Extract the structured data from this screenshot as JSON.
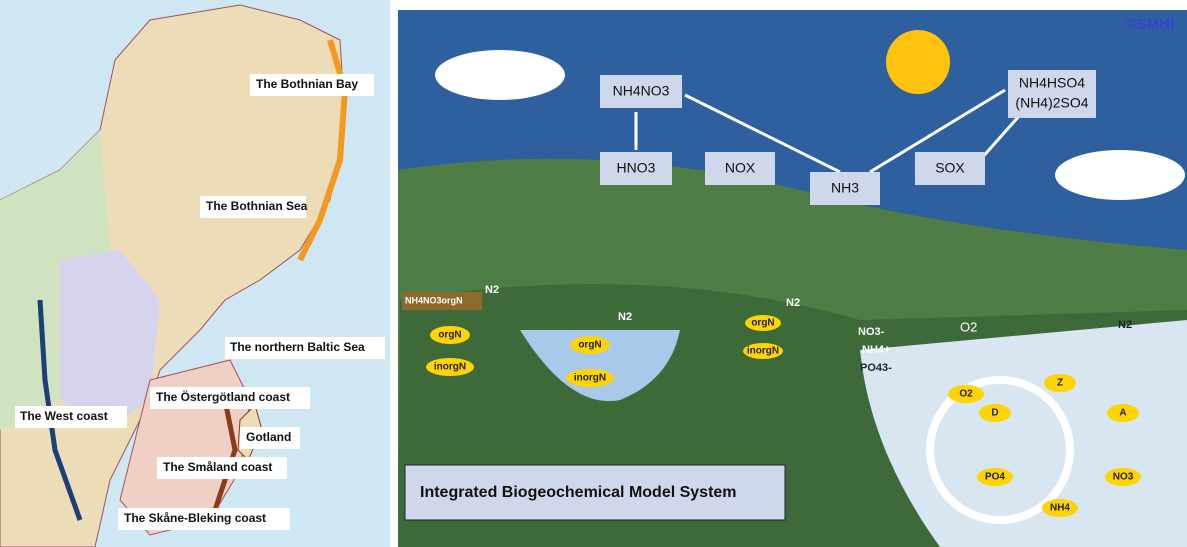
{
  "map": {
    "labels": [
      "The Bothnian Bay",
      "The Bothnian Sea",
      "The northern Baltic Sea",
      "The West coast",
      "The Östergötland coast",
      "Gotland",
      "The Småland coast",
      "The Skåne-Bleking coast"
    ]
  },
  "diagram": {
    "title": "Integrated Biogeochemical Model System",
    "logo": "©SMHI",
    "boxes": [
      "NH4NO3",
      "HNO3",
      "NOX",
      "NH3",
      "SOX"
    ],
    "sulfate": [
      "NH4HSO4",
      "(NH4)2SO4"
    ],
    "n2": [
      "N2",
      "N2",
      "N2",
      "N2"
    ],
    "soil": "NH4NO3orgN",
    "pools": [
      "orgN",
      "inorgN",
      "orgN",
      "inorgN",
      "orgN",
      "inorgN"
    ],
    "nutrients": [
      "NO3-",
      "NH4+",
      "PO43-"
    ],
    "oxygen": [
      "O2",
      "O2"
    ],
    "cycle": [
      "Z",
      "A",
      "NO3",
      "NH4",
      "PO4",
      "D"
    ]
  }
}
